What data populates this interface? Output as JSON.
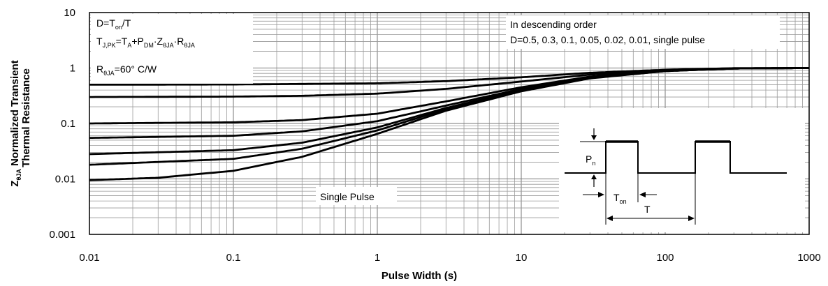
{
  "chart_data": {
    "type": "line",
    "title": "",
    "xlabel": "Pulse Width (s)",
    "ylabel_main": "Normalized Transient",
    "ylabel_line2": "Thermal Resistance",
    "ylabel_symbol": "Z",
    "ylabel_symbol_sub": "θJA",
    "x_scale": "log",
    "y_scale": "log",
    "xlim": [
      0.01,
      1000
    ],
    "ylim": [
      0.001,
      10
    ],
    "x_ticks": [
      "0.01",
      "0.1",
      "1",
      "10",
      "100",
      "1000"
    ],
    "y_ticks": [
      "0.001",
      "0.01",
      "0.1",
      "1",
      "10"
    ],
    "grid": true,
    "series": [
      {
        "name": "D=0.5",
        "x": [
          0.01,
          0.1,
          1,
          3,
          10,
          30,
          100,
          300,
          1000
        ],
        "y": [
          0.5,
          0.505,
          0.53,
          0.58,
          0.68,
          0.82,
          0.93,
          0.99,
          1.0
        ]
      },
      {
        "name": "D=0.3",
        "x": [
          0.01,
          0.1,
          0.3,
          1,
          3,
          10,
          30,
          100,
          300,
          1000
        ],
        "y": [
          0.3,
          0.305,
          0.315,
          0.345,
          0.42,
          0.57,
          0.76,
          0.92,
          0.99,
          1.0
        ]
      },
      {
        "name": "D=0.1",
        "x": [
          0.01,
          0.1,
          0.3,
          1,
          3,
          10,
          30,
          100,
          300,
          1000
        ],
        "y": [
          0.1,
          0.105,
          0.115,
          0.15,
          0.25,
          0.45,
          0.7,
          0.9,
          0.98,
          1.0
        ]
      },
      {
        "name": "D=0.05",
        "x": [
          0.01,
          0.1,
          0.3,
          1,
          3,
          10,
          30,
          100,
          300,
          1000
        ],
        "y": [
          0.055,
          0.06,
          0.072,
          0.11,
          0.21,
          0.42,
          0.68,
          0.89,
          0.98,
          1.0
        ]
      },
      {
        "name": "D=0.02",
        "x": [
          0.01,
          0.1,
          0.3,
          1,
          3,
          10,
          30,
          100,
          300,
          1000
        ],
        "y": [
          0.028,
          0.033,
          0.045,
          0.085,
          0.19,
          0.4,
          0.67,
          0.89,
          0.98,
          1.0
        ]
      },
      {
        "name": "D=0.01",
        "x": [
          0.01,
          0.1,
          0.3,
          1,
          3,
          10,
          30,
          100,
          300,
          1000
        ],
        "y": [
          0.018,
          0.023,
          0.035,
          0.075,
          0.18,
          0.39,
          0.66,
          0.88,
          0.98,
          1.0
        ]
      },
      {
        "name": "single pulse",
        "x": [
          0.01,
          0.03,
          0.1,
          0.3,
          1,
          3,
          10,
          30,
          100,
          300,
          1000
        ],
        "y": [
          0.0095,
          0.0105,
          0.014,
          0.025,
          0.065,
          0.17,
          0.38,
          0.65,
          0.88,
          0.98,
          1.0
        ]
      }
    ],
    "annotations": {
      "formula_line1": "D=T",
      "formula_line1_sub": "on",
      "formula_line1_tail": "/T",
      "formula_line2_a": "T",
      "formula_line2_a_sub": "J,PK",
      "formula_line2_b": "=T",
      "formula_line2_b_sub": "A",
      "formula_line2_c": "+P",
      "formula_line2_c_sub": "DM",
      "formula_line2_d": "·Z",
      "formula_line2_d_sub": "θJA",
      "formula_line2_e": "·R",
      "formula_line2_e_sub": "θJA",
      "rth_a": "R",
      "rth_sub": "θJA",
      "rth_b": "=60°  C/W",
      "order_line1": "In descending order",
      "order_line2": "D=0.5, 0.3, 0.1, 0.05, 0.02, 0.01, single pulse",
      "single_pulse_label": "Single Pulse",
      "inset_p": "P",
      "inset_p_sub": "n",
      "inset_ton": "T",
      "inset_ton_sub": "on",
      "inset_t": "T"
    },
    "colors": {
      "line": "#000000",
      "grid": "#9a9a9a",
      "background": "#ffffff"
    }
  }
}
